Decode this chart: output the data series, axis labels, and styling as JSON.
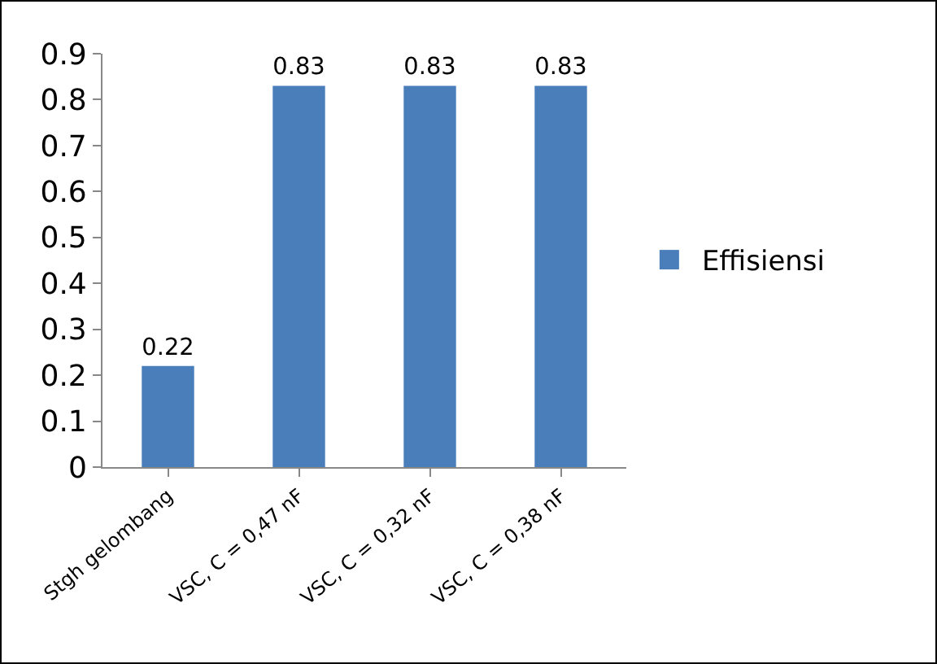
{
  "chart_data": {
    "type": "bar",
    "categories": [
      "Stgh gelombang",
      "VSC, C = 0,47 nF",
      "VSC, C = 0,32 nF",
      "VSC, C = 0,38 nF"
    ],
    "series": [
      {
        "name": "Effisiensi",
        "color": "#4a7ebb",
        "values": [
          0.22,
          0.83,
          0.83,
          0.83
        ]
      }
    ],
    "ylim": [
      0,
      0.9
    ],
    "yticks": [
      0,
      0.1,
      0.2,
      0.3,
      0.4,
      0.5,
      0.6,
      0.7,
      0.8,
      0.9
    ],
    "data_labels": true,
    "grid": false,
    "legend": "right"
  }
}
